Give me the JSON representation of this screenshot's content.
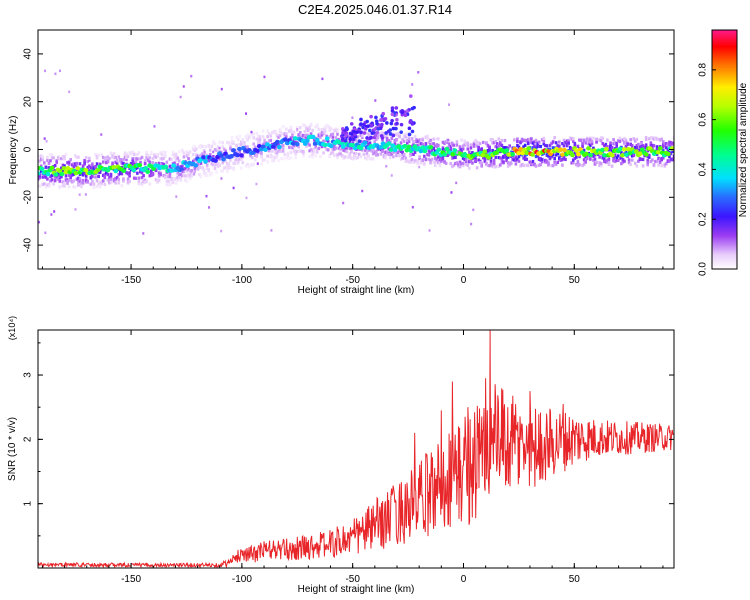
{
  "title": "C2E4.2025.046.01.37.R14",
  "colors": {
    "snr_line": "#e8262a",
    "axis": "#000000",
    "background": "#ffffff"
  },
  "chart_data": [
    {
      "type": "heatmap",
      "xlabel": "Height of straight line (km)",
      "ylabel": "Frequency (Hz)",
      "xlim": [
        -192,
        95
      ],
      "ylim": [
        -50,
        50
      ],
      "xticks": [
        -150,
        -100,
        -50,
        0,
        50
      ],
      "xtick_labels": [
        "-150",
        "-100",
        "-50",
        "0",
        "50"
      ],
      "yticks": [
        -40,
        -20,
        0,
        20,
        40
      ],
      "ytick_labels": [
        "-40",
        "-20",
        "0",
        "20",
        "40"
      ],
      "colorbar": {
        "label": "Normalized spectral amplitude",
        "range": [
          0,
          0.96
        ],
        "ticks": [
          0.0,
          0.2,
          0.4,
          0.6,
          0.8
        ],
        "tick_labels": [
          "0.0",
          "0.2",
          "0.4",
          "0.6",
          "0.8"
        ],
        "colormap": "rainbow (white-purple-blue-cyan-green-yellow-red-magenta)"
      },
      "ridge": {
        "x": [
          -192,
          -170,
          -150,
          -140,
          -130,
          -120,
          -110,
          -100,
          -90,
          -80,
          -70,
          -60,
          -50,
          -40,
          -30,
          -20,
          -10,
          0,
          10,
          20,
          30,
          40,
          50,
          60,
          70,
          80,
          95
        ],
        "freq": [
          -9,
          -9,
          -8,
          -8,
          -8,
          -5,
          -3,
          -1,
          1,
          3,
          4,
          3,
          2,
          2,
          1,
          0,
          -1,
          -2,
          -2,
          -1,
          -1,
          -1,
          -1,
          -1,
          -1,
          -1,
          -1
        ],
        "amplitude": [
          0.55,
          0.65,
          0.55,
          0.5,
          0.4,
          0.35,
          0.3,
          0.3,
          0.32,
          0.35,
          0.38,
          0.4,
          0.42,
          0.4,
          0.45,
          0.48,
          0.5,
          0.55,
          0.6,
          0.7,
          0.85,
          0.8,
          0.7,
          0.65,
          0.65,
          0.6,
          0.6
        ]
      }
    },
    {
      "type": "line",
      "xlabel": "Height of straight line (km)",
      "ylabel": "SNR (10 * v/v)",
      "y_multiplier": "(x10⁴)",
      "xlim": [
        -192,
        95
      ],
      "ylim": [
        0,
        3.7
      ],
      "xticks": [
        -150,
        -100,
        -50,
        0,
        50
      ],
      "xtick_labels": [
        "-150",
        "-100",
        "-50",
        "0",
        "50"
      ],
      "yticks": [
        1,
        2,
        3
      ],
      "ytick_labels": [
        "1",
        "2",
        "3"
      ],
      "series": [
        {
          "color": "#e8262a",
          "envelope_x": [
            -192,
            -150,
            -110,
            -105,
            -100,
            -95,
            -90,
            -80,
            -70,
            -60,
            -50,
            -40,
            -30,
            -20,
            -10,
            0,
            5,
            10,
            12,
            20,
            30,
            40,
            50,
            60,
            70,
            80,
            95
          ],
          "envelope_y": [
            0.06,
            0.05,
            0.05,
            0.1,
            0.25,
            0.22,
            0.3,
            0.3,
            0.35,
            0.4,
            0.5,
            0.7,
            0.9,
            1.1,
            1.4,
            1.6,
            1.75,
            1.9,
            2.1,
            2.0,
            1.95,
            2.0,
            2.05,
            2.05,
            2.05,
            2.05,
            2.05
          ],
          "amplitude_x": [
            -192,
            -110,
            -100,
            -90,
            -60,
            -50,
            -30,
            -10,
            0,
            10,
            20,
            40,
            60,
            95
          ],
          "amplitude_y": [
            0.03,
            0.03,
            0.12,
            0.15,
            0.22,
            0.3,
            0.5,
            0.75,
            0.9,
            1.0,
            0.8,
            0.55,
            0.3,
            0.2
          ],
          "peaks": [
            [
              12,
              3.7
            ],
            [
              10,
              2.95
            ],
            [
              -5,
              2.9
            ],
            [
              -10,
              2.45
            ],
            [
              8,
              2.0
            ],
            [
              2,
              2.5
            ],
            [
              30,
              2.75
            ],
            [
              -22,
              2.1
            ],
            [
              20,
              2.5
            ],
            [
              45,
              2.55
            ]
          ]
        }
      ]
    }
  ]
}
